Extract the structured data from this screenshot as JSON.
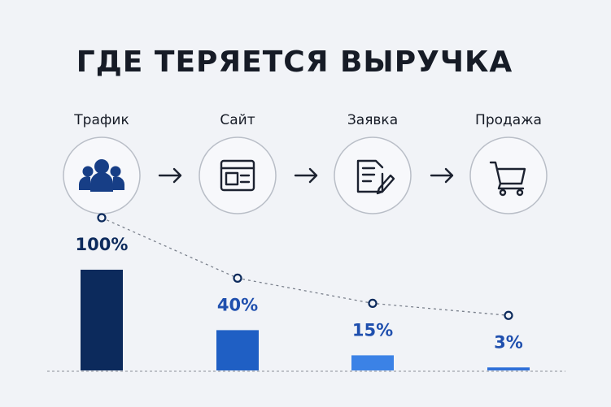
{
  "chart_data": {
    "type": "bar",
    "title": "ГДЕ ТЕРЯЕТСЯ ВЫРУЧКА",
    "categories": [
      "Трафик",
      "Сайт",
      "Заявка",
      "Продажа"
    ],
    "values": [
      100,
      40,
      15,
      3
    ],
    "value_labels": [
      "100%",
      "40%",
      "15%",
      "3%"
    ],
    "colors": [
      "#0c2a5c",
      "#1f5fc4",
      "#3b82e6",
      "#2f70d8"
    ]
  }
}
